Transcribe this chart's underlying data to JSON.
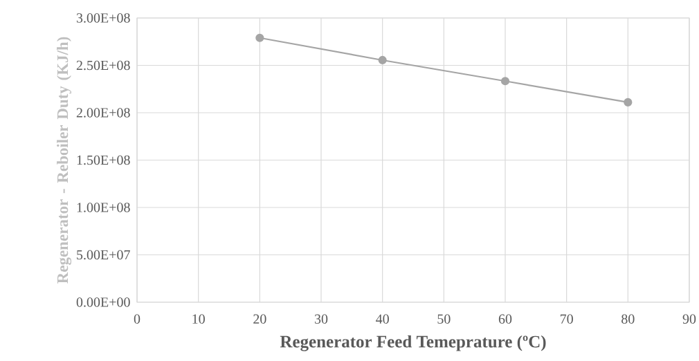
{
  "chart_data": {
    "type": "line",
    "xlabel": "Regenerator Feed Temeprature (ºC)",
    "ylabel": "Regenerator - Reboiler Duty (KJ/h)",
    "x": [
      20,
      40,
      60,
      80
    ],
    "series": [
      {
        "color": "#a5a5a5",
        "values": [
          279000000,
          255500000,
          233400000,
          211000000
        ]
      }
    ],
    "xlim": [
      0,
      90
    ],
    "xticks": [
      0,
      10,
      20,
      30,
      40,
      50,
      60,
      70,
      80,
      90
    ],
    "ylim": [
      0,
      300000000
    ],
    "yticks": [
      {
        "value": 0,
        "label": "0.00E+00"
      },
      {
        "value": 50000000,
        "label": "5.00E+07"
      },
      {
        "value": 100000000,
        "label": "1.00E+08"
      },
      {
        "value": 150000000,
        "label": "1.50E+08"
      },
      {
        "value": 200000000,
        "label": "2.00E+08"
      },
      {
        "value": 250000000,
        "label": "2.50E+08"
      },
      {
        "value": 300000000,
        "label": "3.00E+08"
      }
    ],
    "grid": true,
    "marker": "circle",
    "line_style": "solid"
  }
}
